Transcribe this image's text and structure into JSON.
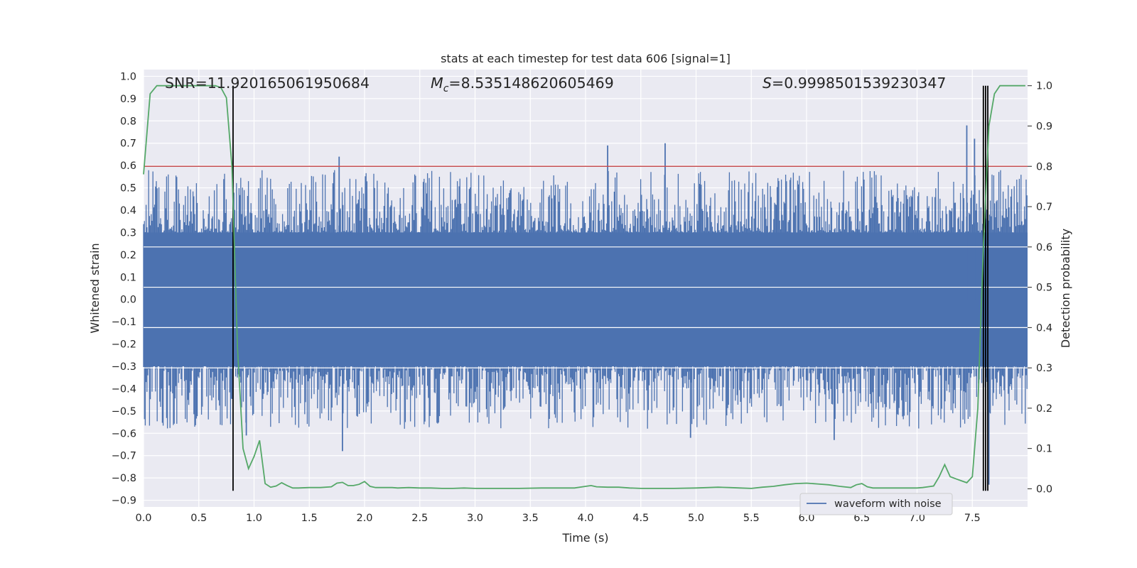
{
  "chart_data": {
    "type": "line",
    "title": "stats at each timestep for test data 606 [signal=1]",
    "xlabel": "Time (s)",
    "ylabel": "Whitened strain",
    "ylabel_right": "Detection probability",
    "xlim": [
      0.0,
      8.0
    ],
    "ylim": [
      -0.93,
      1.03
    ],
    "ylim_right": [
      -0.045,
      1.04
    ],
    "x_ticks": [
      "0.0",
      "0.5",
      "1.0",
      "1.5",
      "2.0",
      "2.5",
      "3.0",
      "3.5",
      "4.0",
      "4.5",
      "5.0",
      "5.5",
      "6.0",
      "6.5",
      "7.0",
      "7.5"
    ],
    "y_ticks": [
      "1.0",
      "0.9",
      "0.8",
      "0.7",
      "0.6",
      "0.5",
      "0.4",
      "0.3",
      "0.2",
      "0.1",
      "0.0",
      "−0.1",
      "−0.2",
      "−0.3",
      "−0.4",
      "−0.5",
      "−0.6",
      "−0.7",
      "−0.8",
      "−0.9"
    ],
    "y_ticks_right": [
      "1.0",
      "0.9",
      "0.8",
      "0.7",
      "0.6",
      "0.5",
      "0.4",
      "0.3",
      "0.2",
      "0.1",
      "0.0"
    ],
    "grid": true,
    "legend": {
      "placement": "lower-right",
      "entries": [
        "waveform with noise"
      ]
    },
    "annotations": {
      "snr_label": "SNR=11.920165061950684",
      "mc_symbol": "M",
      "mc_subscript": "c",
      "mc_value": "=8.535148620605469",
      "s_symbol": "S",
      "s_value": "=0.9998501539230347"
    },
    "threshold_probability": 0.8,
    "vertical_markers": [
      0.81,
      7.6,
      7.62,
      7.64
    ],
    "series": [
      {
        "name": "waveform with noise",
        "axis": "left",
        "color": "#4c72b0",
        "envelope_range": [
          -0.68,
          0.78
        ],
        "typical_band": [
          -0.3,
          0.3
        ],
        "spikes": [
          {
            "x": 0.93,
            "y": -0.61
          },
          {
            "x": 1.8,
            "y": -0.68
          },
          {
            "x": 1.77,
            "y": 0.64
          },
          {
            "x": 4.2,
            "y": 0.69
          },
          {
            "x": 4.72,
            "y": 0.7
          },
          {
            "x": 4.95,
            "y": -0.62
          },
          {
            "x": 6.25,
            "y": -0.63
          },
          {
            "x": 7.45,
            "y": 0.78
          },
          {
            "x": 7.52,
            "y": 0.72
          },
          {
            "x": 7.65,
            "y": -0.83
          }
        ]
      },
      {
        "name": "",
        "axis": "right",
        "color": "#55a868",
        "x": [
          0.0,
          0.06,
          0.12,
          0.2,
          0.3,
          0.4,
          0.5,
          0.6,
          0.65,
          0.7,
          0.75,
          0.8,
          0.85,
          0.9,
          0.95,
          1.0,
          1.05,
          1.1,
          1.15,
          1.2,
          1.25,
          1.3,
          1.35,
          1.4,
          1.5,
          1.6,
          1.7,
          1.75,
          1.8,
          1.85,
          1.9,
          1.95,
          2.0,
          2.05,
          2.1,
          2.15,
          2.2,
          2.25,
          2.3,
          2.4,
          2.5,
          2.6,
          2.7,
          2.8,
          2.9,
          3.0,
          3.2,
          3.4,
          3.6,
          3.8,
          3.9,
          4.0,
          4.05,
          4.1,
          4.2,
          4.3,
          4.4,
          4.5,
          4.8,
          5.0,
          5.2,
          5.3,
          5.4,
          5.5,
          5.6,
          5.7,
          5.8,
          5.9,
          6.0,
          6.1,
          6.2,
          6.3,
          6.4,
          6.45,
          6.5,
          6.55,
          6.6,
          6.7,
          6.8,
          6.9,
          7.0,
          7.05,
          7.1,
          7.15,
          7.2,
          7.25,
          7.3,
          7.35,
          7.4,
          7.45,
          7.5,
          7.55,
          7.6,
          7.65,
          7.7,
          7.75,
          7.8,
          7.9,
          7.98
        ],
        "values": [
          0.78,
          0.98,
          1.0,
          1.0,
          1.0,
          1.0,
          1.0,
          1.0,
          1.0,
          0.995,
          0.97,
          0.8,
          0.35,
          0.1,
          0.05,
          0.08,
          0.12,
          0.013,
          0.004,
          0.007,
          0.015,
          0.008,
          0.002,
          0.002,
          0.003,
          0.003,
          0.005,
          0.014,
          0.016,
          0.008,
          0.008,
          0.011,
          0.018,
          0.006,
          0.003,
          0.003,
          0.003,
          0.003,
          0.002,
          0.003,
          0.002,
          0.002,
          0.001,
          0.001,
          0.002,
          0.001,
          0.001,
          0.001,
          0.002,
          0.002,
          0.002,
          0.006,
          0.008,
          0.005,
          0.004,
          0.004,
          0.002,
          0.001,
          0.001,
          0.002,
          0.004,
          0.003,
          0.002,
          0.001,
          0.004,
          0.006,
          0.01,
          0.013,
          0.014,
          0.012,
          0.01,
          0.006,
          0.003,
          0.01,
          0.013,
          0.005,
          0.002,
          0.002,
          0.002,
          0.002,
          0.002,
          0.003,
          0.005,
          0.007,
          0.03,
          0.06,
          0.03,
          0.025,
          0.02,
          0.015,
          0.03,
          0.2,
          0.6,
          0.9,
          0.98,
          1.0,
          1.0,
          1.0,
          1.0
        ]
      }
    ],
    "threshold_line_color": "#c44e52",
    "marker_color": "#000000",
    "background_color": "#eaeaf2"
  }
}
